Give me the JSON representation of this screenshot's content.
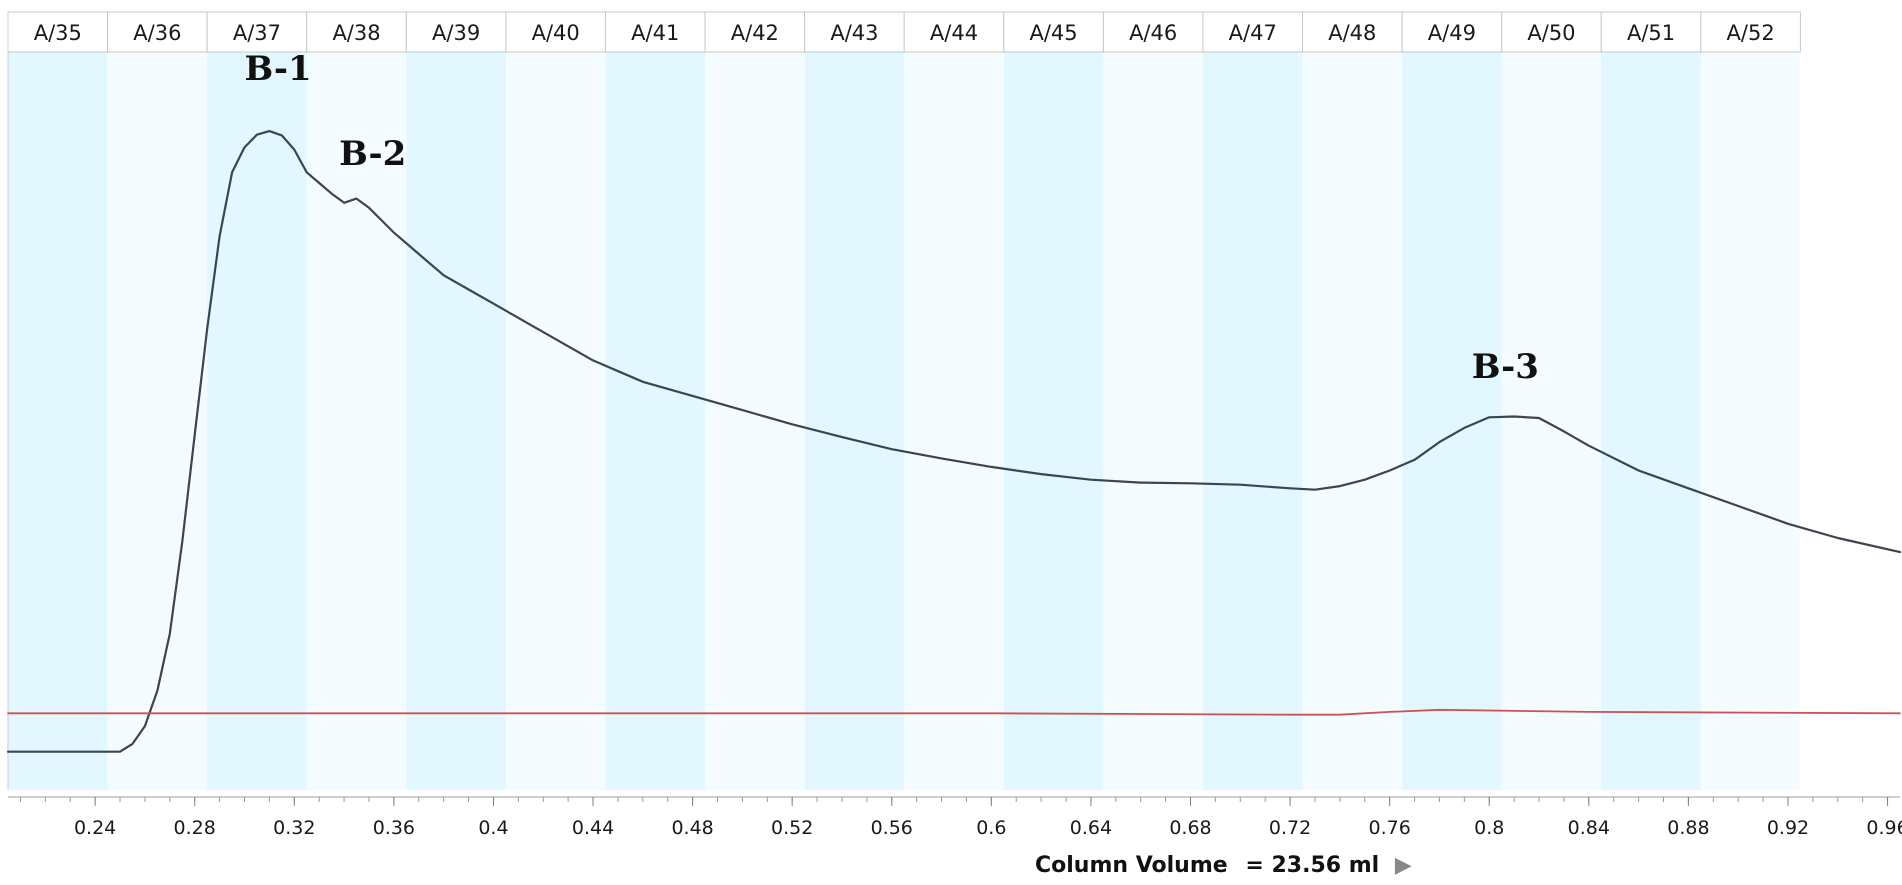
{
  "chart_data": {
    "type": "line",
    "xlim": [
      0.205,
      0.965
    ],
    "ylim": [
      0,
      100
    ],
    "x_ticks_major": [
      0.24,
      0.28,
      0.32,
      0.36,
      0.4,
      0.44,
      0.48,
      0.52,
      0.56,
      0.6,
      0.64,
      0.68,
      0.72,
      0.76,
      0.8,
      0.84,
      0.88,
      0.92,
      0.96
    ],
    "x_tick_labels": [
      "0.24",
      "0.28",
      "0.32",
      "0.36",
      "0.4",
      "0.44",
      "0.48",
      "0.52",
      "0.56",
      "0.6",
      "0.64",
      "0.68",
      "0.72",
      "0.76",
      "0.8",
      "0.84",
      "0.88",
      "0.92",
      "0.96"
    ],
    "x_minor_step": 0.01,
    "xlabel": "Column Volume",
    "xlabel_value": "= 23.56 ml",
    "fractions": {
      "labels": [
        "A/35",
        "A/36",
        "A/37",
        "A/38",
        "A/39",
        "A/40",
        "A/41",
        "A/42",
        "A/43",
        "A/44",
        "A/45",
        "A/46",
        "A/47",
        "A/48",
        "A/49",
        "A/50",
        "A/51",
        "A/52"
      ],
      "start": 0.205,
      "width": 0.04,
      "shaded_color": "#e2f7ff",
      "light_color": "#f4fcff"
    },
    "series": [
      {
        "color": "#3a4550",
        "x": [
          0.205,
          0.25,
          0.255,
          0.26,
          0.265,
          0.27,
          0.275,
          0.28,
          0.285,
          0.29,
          0.295,
          0.3,
          0.305,
          0.31,
          0.315,
          0.32,
          0.325,
          0.33,
          0.335,
          0.34,
          0.345,
          0.35,
          0.36,
          0.37,
          0.38,
          0.39,
          0.4,
          0.42,
          0.44,
          0.46,
          0.48,
          0.5,
          0.52,
          0.54,
          0.56,
          0.58,
          0.6,
          0.62,
          0.64,
          0.66,
          0.68,
          0.7,
          0.72,
          0.73,
          0.74,
          0.75,
          0.76,
          0.77,
          0.78,
          0.79,
          0.8,
          0.81,
          0.82,
          0.83,
          0.84,
          0.86,
          0.88,
          0.9,
          0.92,
          0.94,
          0.965
        ],
        "y": [
          5.4,
          5.4,
          6.5,
          9,
          14,
          22,
          35,
          50,
          65,
          78,
          87,
          90.5,
          92.3,
          92.8,
          92.2,
          90.2,
          87,
          85.5,
          84,
          82.7,
          83.3,
          82,
          78.5,
          75.5,
          72.5,
          70.5,
          68.5,
          64.5,
          60.5,
          57.5,
          55.5,
          53.5,
          51.5,
          49.7,
          48,
          46.7,
          45.5,
          44.5,
          43.7,
          43.3,
          43.2,
          43,
          42.5,
          42.3,
          42.8,
          43.7,
          45,
          46.5,
          49,
          51,
          52.5,
          52.6,
          52.4,
          50.5,
          48.5,
          45,
          42.5,
          40,
          37.5,
          35.5,
          33.5
        ]
      },
      {
        "color": "#d05050",
        "x": [
          0.205,
          0.6,
          0.72,
          0.74,
          0.76,
          0.78,
          0.8,
          0.84,
          0.965
        ],
        "y": [
          10.8,
          10.8,
          10.6,
          10.6,
          11.0,
          11.3,
          11.2,
          11.0,
          10.8
        ]
      }
    ],
    "annotations": [
      {
        "text": "B-1",
        "x": 0.3,
        "y": 100
      },
      {
        "text": "B-2",
        "x": 0.338,
        "y": 88
      },
      {
        "text": "B-3",
        "x": 0.793,
        "y": 58
      }
    ]
  }
}
